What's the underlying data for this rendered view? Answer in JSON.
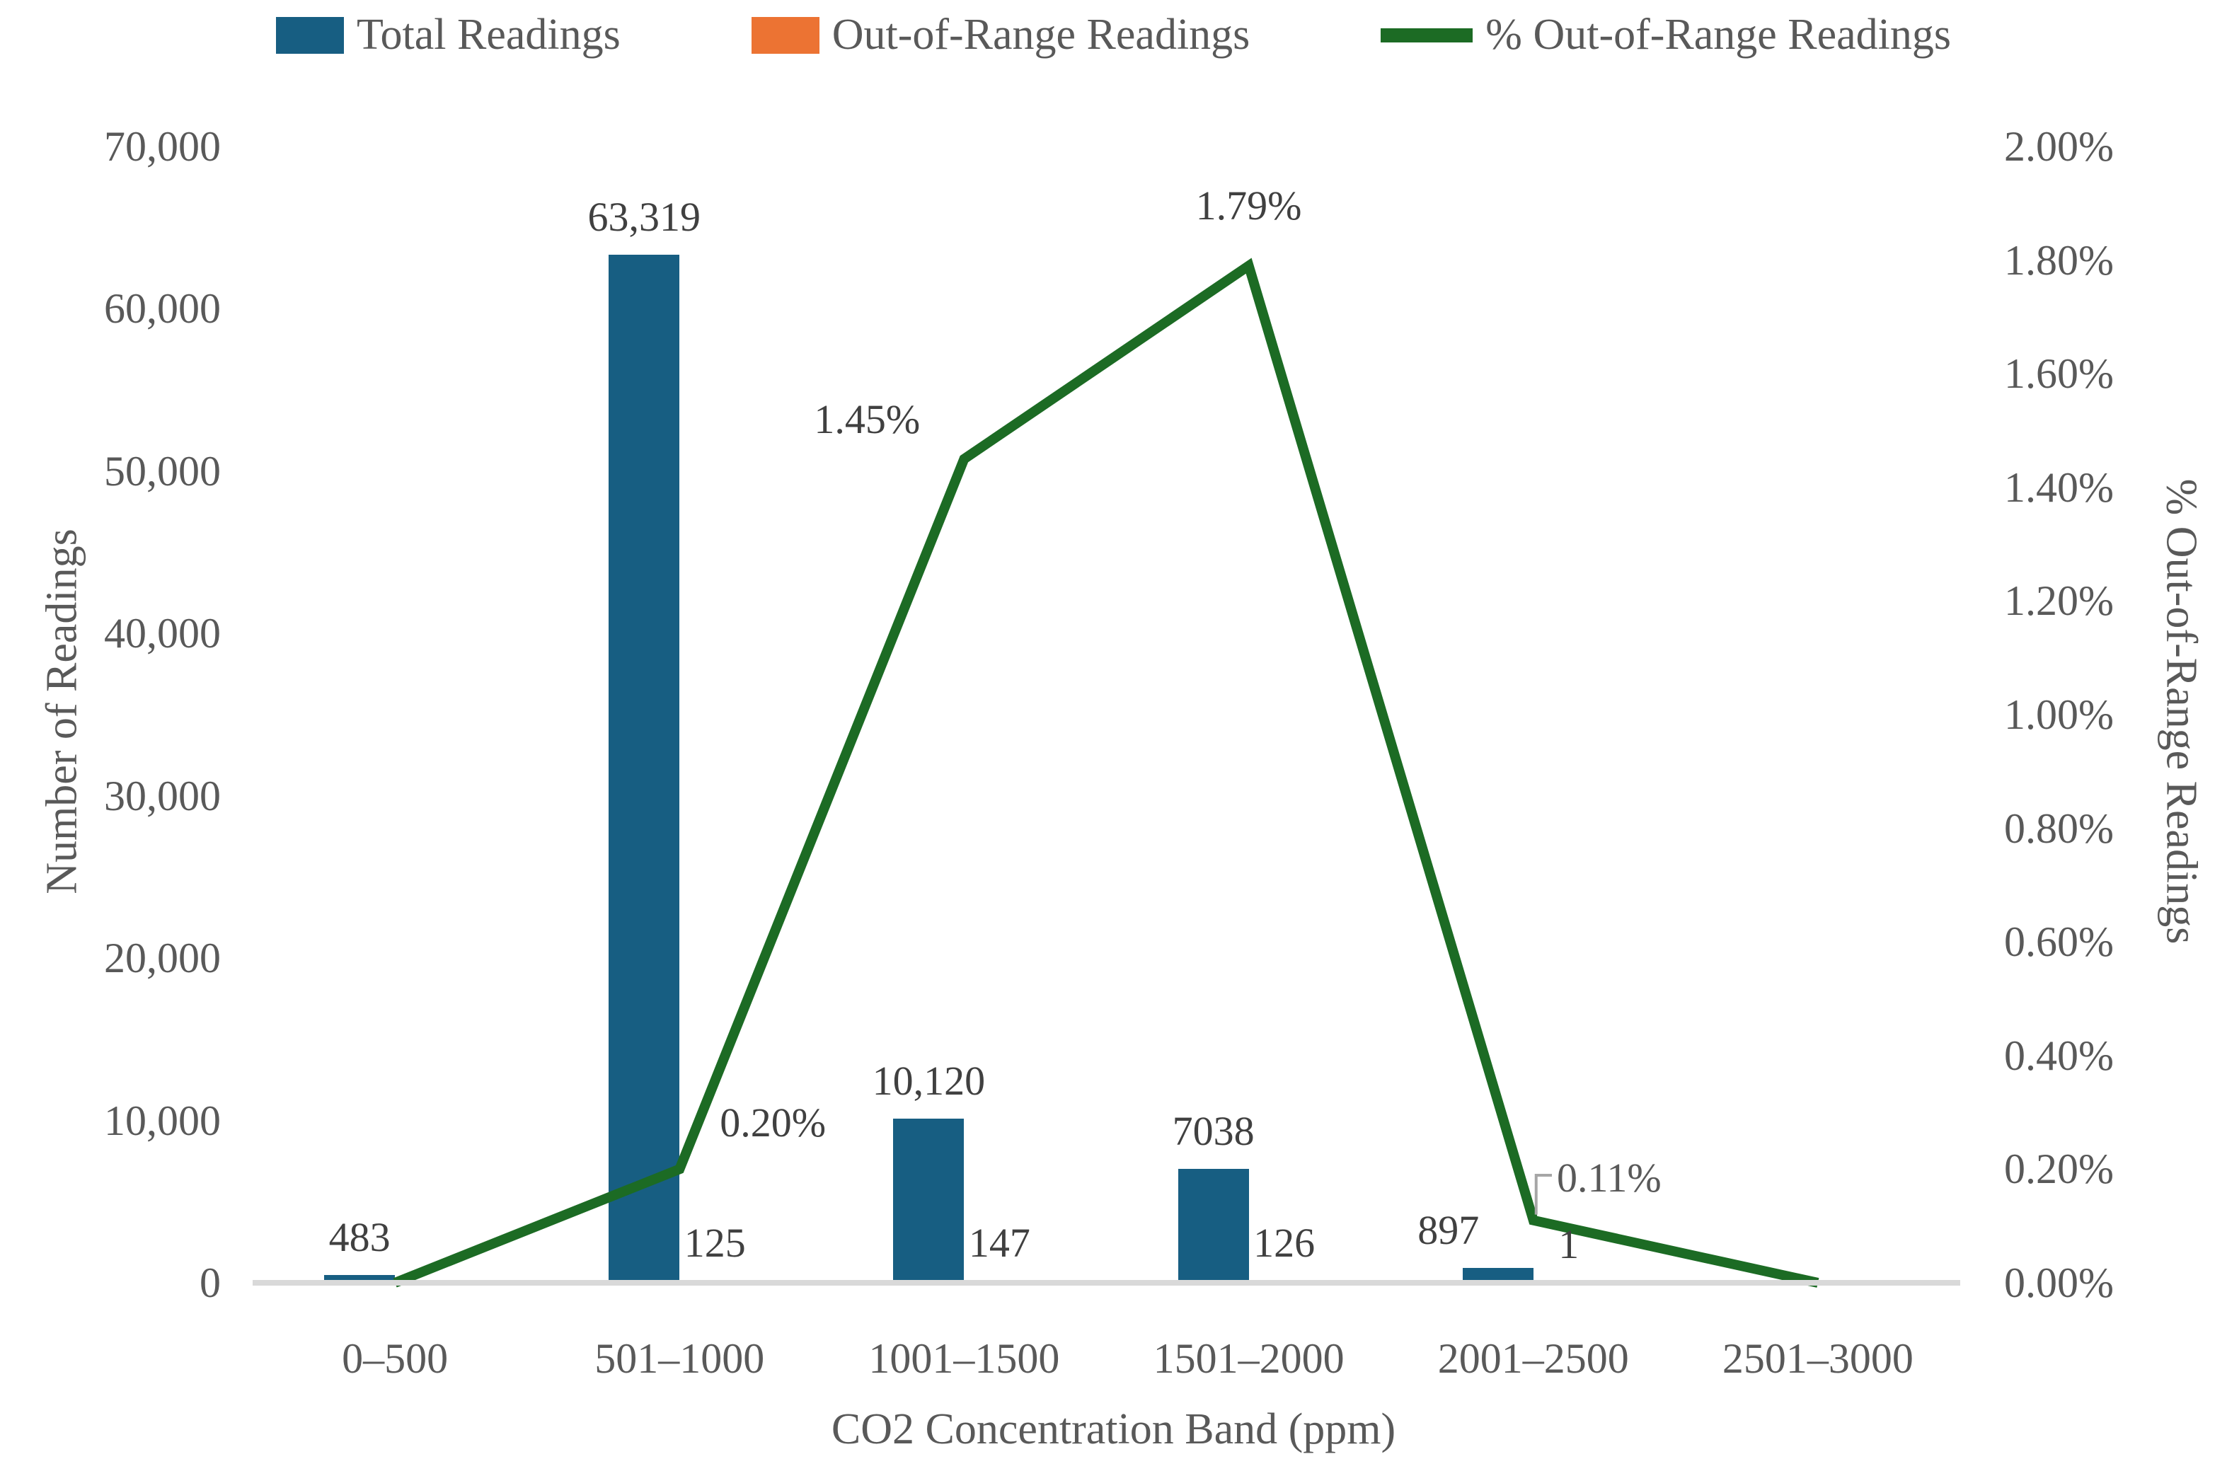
{
  "legend": {
    "items": [
      {
        "label": "Total Readings",
        "swatch": "bar",
        "color": "#175E82"
      },
      {
        "label": "Out-of-Range Readings",
        "swatch": "bar",
        "color": "#EC7333"
      },
      {
        "label": "% Out-of-Range Readings",
        "swatch": "line",
        "color": "#1C6B24"
      }
    ]
  },
  "chart_data": {
    "type": "combo bar+line",
    "title": "",
    "categories": [
      "0–500",
      "501–1000",
      "1001–1500",
      "1501–2000",
      "2001–2500",
      "2501–3000"
    ],
    "series": [
      {
        "name": "Total Readings",
        "type": "bar",
        "axis": "left",
        "color": "#175E82",
        "values": [
          483,
          63319,
          10120,
          7038,
          897,
          null
        ],
        "labels": [
          "483",
          "63,319",
          "10,120",
          "7038",
          "897",
          ""
        ]
      },
      {
        "name": "Out-of-Range Readings",
        "type": "bar",
        "axis": "left",
        "color": "#EC7333",
        "values": [
          null,
          125,
          147,
          126,
          1,
          null
        ],
        "labels": [
          "",
          "125",
          "147",
          "126",
          "1",
          ""
        ]
      },
      {
        "name": "% Out-of-Range Readings",
        "type": "line",
        "axis": "right",
        "color": "#1C6B24",
        "values": [
          0.0,
          0.2,
          1.45,
          1.79,
          0.11,
          0.0
        ],
        "labels": [
          "",
          "0.20%",
          "1.45%",
          "1.79%",
          "0.11%",
          ""
        ],
        "callout_label_index": 4
      }
    ],
    "left_axis": {
      "title": "Number of Readings",
      "min": 0,
      "max": 70000,
      "step": 10000,
      "tick_values": [
        0,
        10000,
        20000,
        30000,
        40000,
        50000,
        60000,
        70000
      ],
      "tick_labels": [
        "0",
        "10,000",
        "20,000",
        "30,000",
        "40,000",
        "50,000",
        "60,000",
        "70,000"
      ]
    },
    "right_axis": {
      "title": "% Out-of-Range Readings",
      "min": 0,
      "max": 2,
      "tick_values": [
        0,
        0.2,
        0.4,
        0.6,
        0.8,
        1.0,
        1.2,
        1.4,
        1.6,
        1.8,
        2.0
      ],
      "tick_labels": [
        "0.00%",
        "0.20%",
        "0.40%",
        "0.60%",
        "0.80%",
        "1.00%",
        "1.20%",
        "1.40%",
        "1.60%",
        "1.80%",
        "2.00%"
      ]
    },
    "x_axis": {
      "title": "CO2 Concentration Band (ppm)",
      "labels": [
        "0–500",
        "501–1000",
        "1001–1500",
        "1501–2000",
        "2001–2500",
        "2501–3000"
      ]
    },
    "grid": false,
    "legend_position": "top",
    "colors": {
      "baseline": "#D9D9D9",
      "tick_text": "#595959",
      "data_label_text": "#404040",
      "callout_line": "#A6A6A6"
    }
  }
}
